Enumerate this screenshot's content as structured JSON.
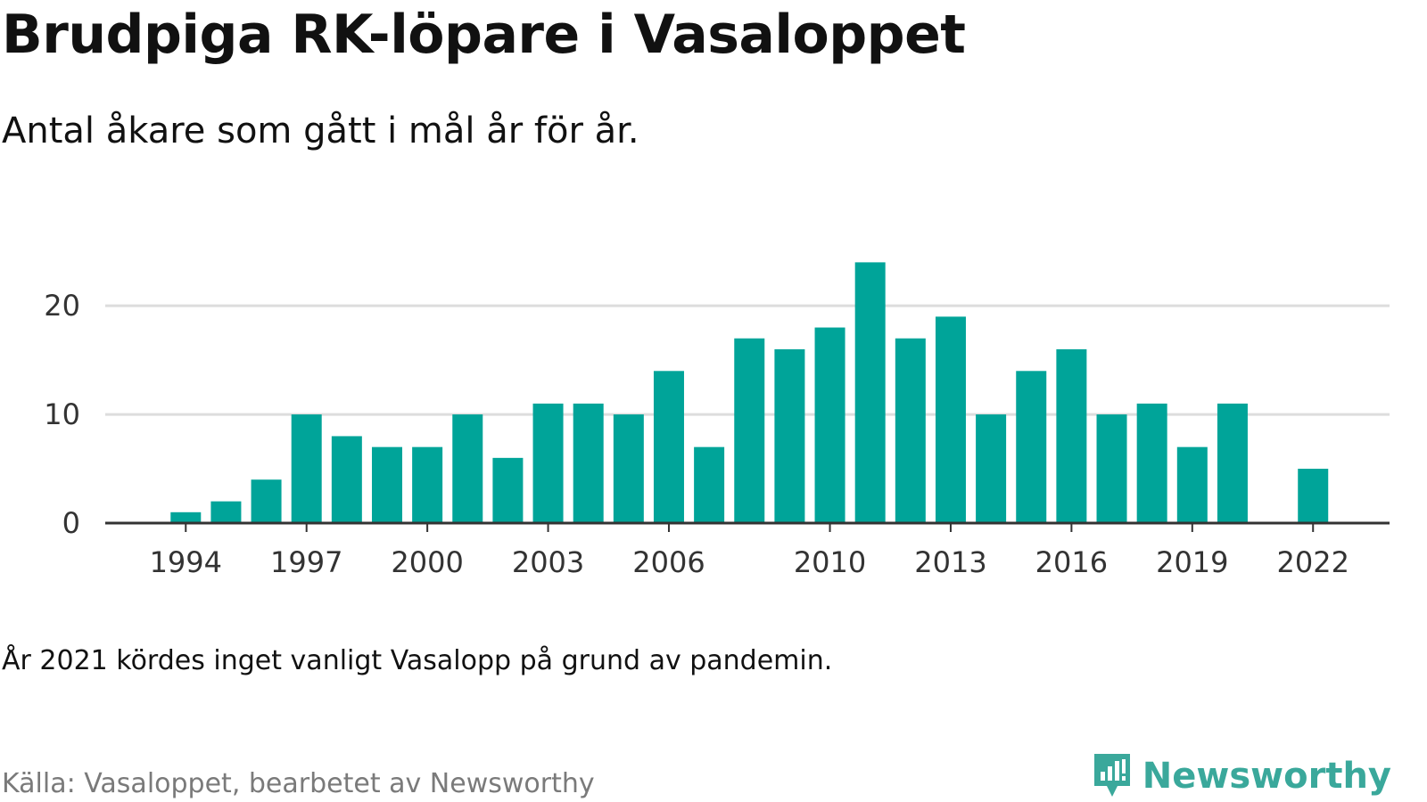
{
  "title": "Brudpiga RK-löpare i Vasaloppet",
  "subtitle": "Antal åkare som gått i mål år för år.",
  "note": "År 2021 kördes inget vanligt Vasalopp på grund av pandemin.",
  "source": "Källa: Vasaloppet, bearbetet av Newsworthy",
  "brand": {
    "name": "Newsworthy",
    "icon": "newsworthy-logo-icon",
    "color": "#3aa89b"
  },
  "colors": {
    "bar": "#00a499",
    "grid": "#dddddd",
    "axis": "#333333"
  },
  "chart_data": {
    "type": "bar",
    "title": "Brudpiga RK-löpare i Vasaloppet",
    "subtitle": "Antal åkare som gått i mål år för år.",
    "xlabel": "",
    "ylabel": "",
    "x_range": [
      1992,
      2023.9
    ],
    "ylim": [
      0,
      26
    ],
    "grid": true,
    "y_ticks": [
      0,
      10,
      20
    ],
    "x_ticks": [
      1994,
      1997,
      2000,
      2003,
      2006,
      2010,
      2013,
      2016,
      2019,
      2022
    ],
    "categories": [
      1994,
      1995,
      1996,
      1997,
      1998,
      1999,
      2000,
      2001,
      2002,
      2003,
      2004,
      2005,
      2006,
      2007,
      2008,
      2009,
      2010,
      2011,
      2012,
      2013,
      2014,
      2015,
      2016,
      2017,
      2018,
      2019,
      2020,
      2022
    ],
    "values": [
      1,
      2,
      4,
      10,
      8,
      7,
      7,
      10,
      6,
      11,
      11,
      10,
      14,
      7,
      17,
      16,
      18,
      24,
      17,
      19,
      10,
      14,
      16,
      10,
      11,
      7,
      11,
      5
    ]
  }
}
